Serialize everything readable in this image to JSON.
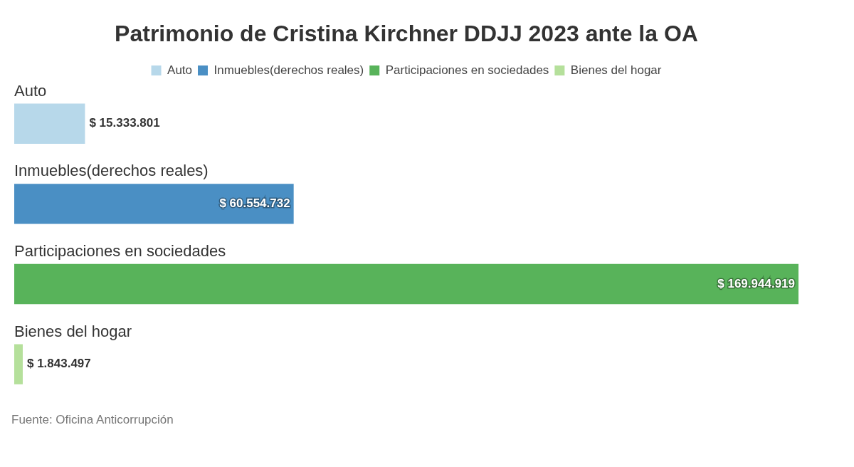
{
  "chart_data": {
    "type": "bar",
    "orientation": "horizontal",
    "stacked": true,
    "title": "Patrimonio de Cristina Kirchner DDJJ 2023 ante la OA",
    "categories": [
      "Auto",
      "Inmuebles(derechos reales)",
      "Participaciones en sociedades",
      "Bienes del hogar"
    ],
    "series": [
      {
        "name": "Auto",
        "color": "#b7d8ea",
        "values": [
          15333801,
          null,
          null,
          null
        ],
        "value_labels": [
          "$ 15.333.801",
          null,
          null,
          null
        ]
      },
      {
        "name": "Inmuebles(derechos reales)",
        "color": "#4a8fc4",
        "values": [
          null,
          60554732,
          null,
          null
        ],
        "value_labels": [
          null,
          "$ 60.554.732",
          null,
          null
        ]
      },
      {
        "name": "Participaciones en sociedades",
        "color": "#58b35a",
        "values": [
          null,
          null,
          169944919,
          null
        ],
        "value_labels": [
          null,
          null,
          "$ 169.944.919",
          null
        ]
      },
      {
        "name": "Bienes del hogar",
        "color": "#b5e09b",
        "values": [
          null,
          null,
          null,
          1843497
        ],
        "value_labels": [
          null,
          null,
          null,
          "$ 1.843.497"
        ]
      }
    ],
    "legend": "top",
    "annotations": [
      "Fuente: Oficina Anticorrupción"
    ]
  }
}
